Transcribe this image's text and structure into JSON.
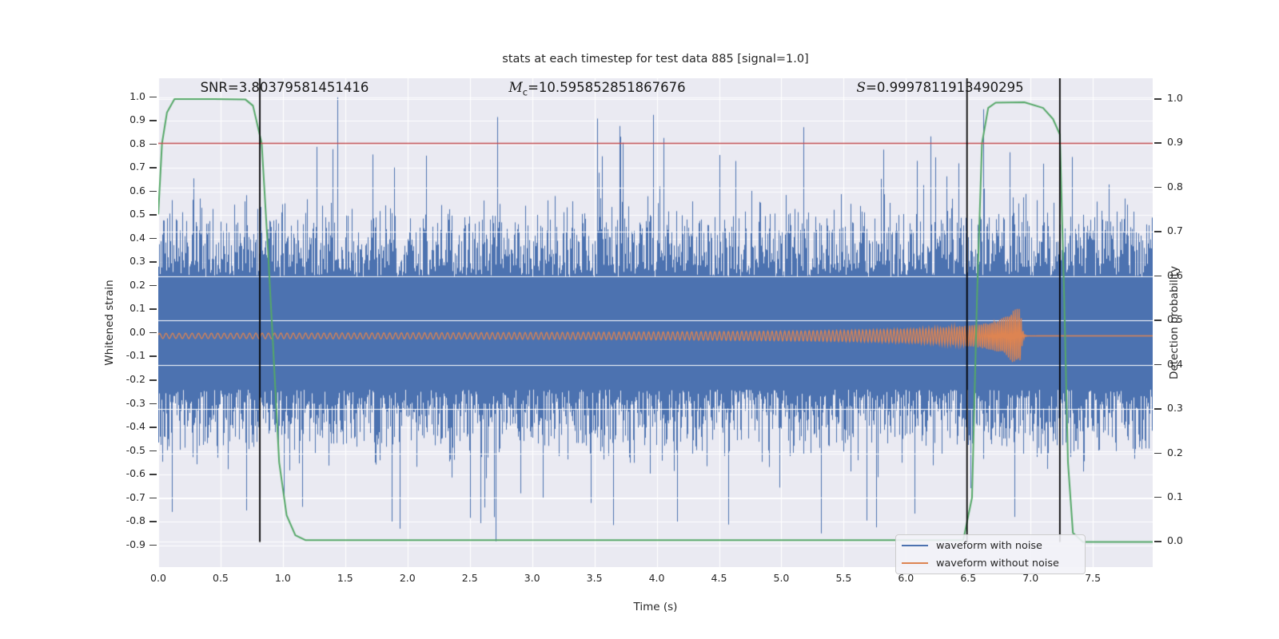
{
  "palette": {
    "blue": "#4C72B0",
    "orange": "#DD8452",
    "green": "#55A868",
    "red": "#C44E52",
    "axes_background": "#EAEAF2",
    "grid": "#FFFFFF",
    "text": "#262626",
    "vline": "#000000"
  },
  "figure": {
    "title": "stats at each timestep for test data 885 [signal=1.0]",
    "xlabel": "Time (s)",
    "ylabel_left": "Whitened strain",
    "ylabel_right": "Detection probability"
  },
  "annotations": {
    "snr": {
      "label": "SNR",
      "value": "=3.80379581451416"
    },
    "mc": {
      "label": "M",
      "sub": "c",
      "value": "=10.595852851867676"
    },
    "s": {
      "label": "S",
      "value": "=0.9997811913490295"
    }
  },
  "legend": {
    "items": [
      {
        "label": "waveform with noise",
        "color": "#4C72B0"
      },
      {
        "label": "waveform without noise",
        "color": "#DD8452"
      }
    ]
  },
  "chart_data": {
    "type": "line",
    "title": "stats at each timestep for test data 885 [signal=1.0]",
    "xlabel": "Time (s)",
    "ylabel_left": "Whitened strain",
    "ylabel_right": "Detection probability",
    "xlim": [
      0,
      7.98
    ],
    "ylim_left": [
      -0.993,
      1.081
    ],
    "ylim_right": [
      -0.057,
      1.047
    ],
    "xticks": [
      0.0,
      0.5,
      1.0,
      1.5,
      2.0,
      2.5,
      3.0,
      3.5,
      4.0,
      4.5,
      5.0,
      5.5,
      6.0,
      6.5,
      7.0,
      7.5
    ],
    "yticks_left": [
      1.0,
      0.9,
      0.8,
      0.7,
      0.6,
      0.5,
      0.4,
      0.3,
      0.2,
      0.1,
      0.0,
      -0.1,
      -0.2,
      -0.3,
      -0.4,
      -0.5,
      -0.6,
      -0.7,
      -0.8,
      -0.9
    ],
    "yticks_right": [
      1.0,
      0.9,
      0.8,
      0.7,
      0.6,
      0.5,
      0.4,
      0.3,
      0.2,
      0.1,
      0.0
    ],
    "grid": true,
    "legend_position": "lower right",
    "series": [
      {
        "name": "waveform with noise",
        "kind": "noise",
        "axis": "left",
        "color": "#4C72B0",
        "seed": 885,
        "core_half_band": 0.24,
        "typical_extra": 0.4,
        "spike_probability": 0.028,
        "notable_extremes": [
          [
            1.44,
            1.0
          ],
          [
            3.52,
            0.91
          ],
          [
            1.27,
            0.79
          ],
          [
            1.4,
            0.78
          ],
          [
            3.56,
            0.75
          ],
          [
            4.63,
            0.73
          ],
          [
            6.42,
            0.72
          ],
          [
            1.94,
            -0.83
          ],
          [
            5.32,
            -0.85
          ],
          [
            4.16,
            -0.8
          ],
          [
            2.62,
            -0.74
          ],
          [
            6.87,
            -0.78
          ]
        ]
      },
      {
        "name": "waveform without noise",
        "kind": "chirp",
        "axis": "left",
        "color": "#DD8452",
        "baseline": -0.012,
        "start_amplitude": 0.011,
        "peak_amplitude": 0.115,
        "merger_time_s": 6.92,
        "start_frequency_hz": 19,
        "ringdown_decay_s": 0.012
      },
      {
        "name": "detection probability",
        "kind": "line",
        "axis": "right",
        "color": "#55A868",
        "points": [
          [
            0.0,
            0.74
          ],
          [
            0.03,
            0.9
          ],
          [
            0.07,
            0.97
          ],
          [
            0.13,
            1.0
          ],
          [
            0.45,
            1.0
          ],
          [
            0.7,
            0.999
          ],
          [
            0.76,
            0.985
          ],
          [
            0.83,
            0.9
          ],
          [
            0.88,
            0.66
          ],
          [
            0.92,
            0.45
          ],
          [
            0.97,
            0.18
          ],
          [
            1.03,
            0.06
          ],
          [
            1.1,
            0.015
          ],
          [
            1.18,
            0.004
          ],
          [
            6.46,
            0.004
          ],
          [
            6.53,
            0.1
          ],
          [
            6.57,
            0.55
          ],
          [
            6.61,
            0.9
          ],
          [
            6.66,
            0.98
          ],
          [
            6.72,
            0.992
          ],
          [
            6.95,
            0.993
          ],
          [
            7.1,
            0.98
          ],
          [
            7.18,
            0.955
          ],
          [
            7.235,
            0.92
          ],
          [
            7.27,
            0.55
          ],
          [
            7.3,
            0.18
          ],
          [
            7.34,
            0.02
          ],
          [
            7.42,
            0.0
          ],
          [
            7.98,
            0.0
          ]
        ]
      }
    ],
    "threshold_line": {
      "y": 0.9,
      "axis": "right",
      "color": "#C44E52"
    },
    "vlines": {
      "x": [
        0.815,
        6.49,
        7.235
      ],
      "color": "#000000",
      "span_right_axis": [
        0.0,
        1.047
      ]
    }
  }
}
